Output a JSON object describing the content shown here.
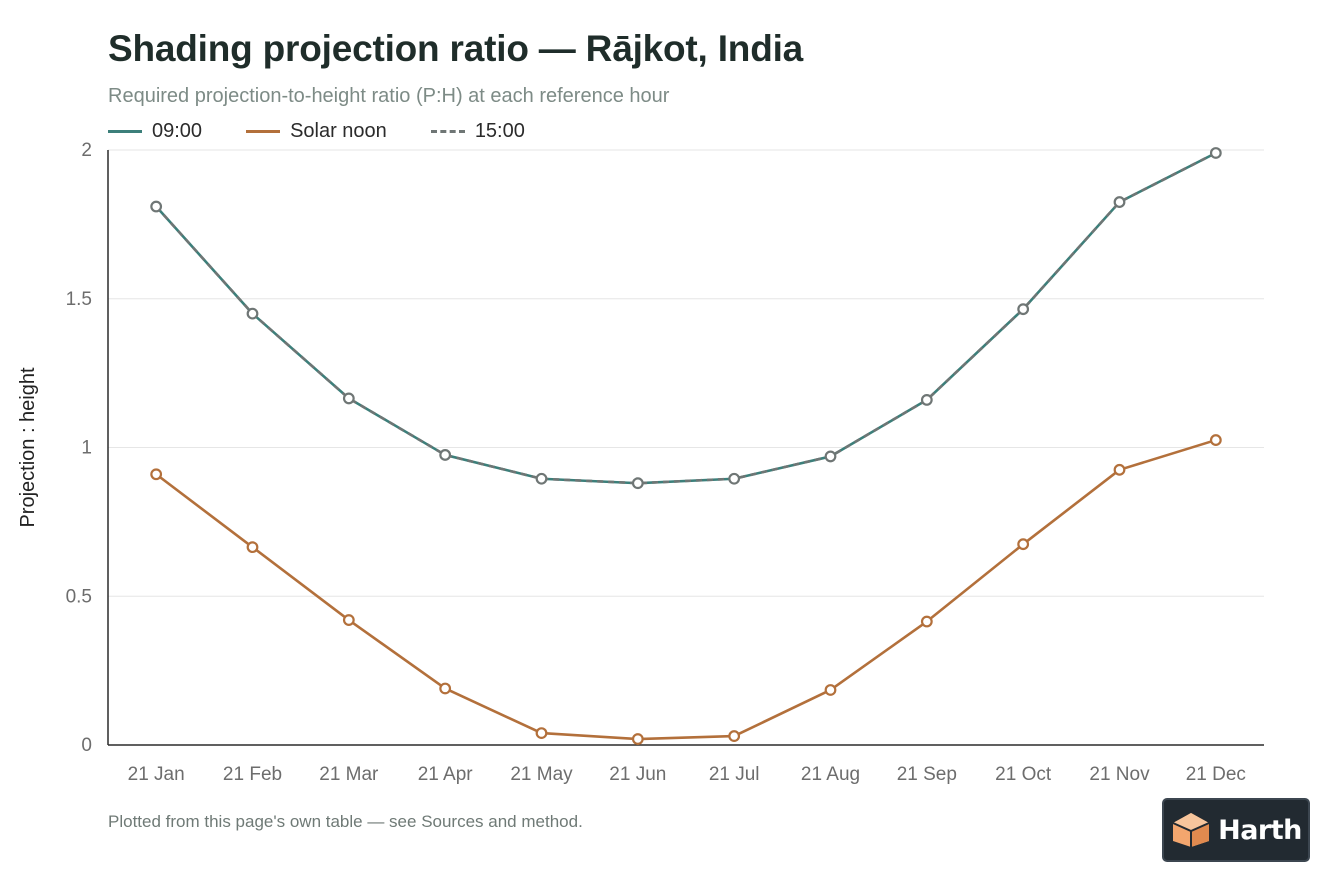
{
  "title": "Shading projection ratio — Rājkot, India",
  "subtitle": "Required projection-to-height ratio (P:H) at each reference hour",
  "footnote": "Plotted from this page's own table — see Sources and method.",
  "brand": {
    "name": "Harth",
    "icon": "cube-logo-icon"
  },
  "colors": {
    "series_0900": "#3c7f7a",
    "series_noon": "#b3703b",
    "series_1500": "#6f7675",
    "grid": "#e6e6e6",
    "axis": "#2b2b2b"
  },
  "chart_data": {
    "type": "line",
    "title": "Shading projection ratio — Rājkot, India",
    "subtitle": "Required projection-to-height ratio (P:H) at each reference hour",
    "xlabel": "",
    "ylabel": "Projection : height",
    "categories": [
      "21 Jan",
      "21 Feb",
      "21 Mar",
      "21 Apr",
      "21 May",
      "21 Jun",
      "21 Jul",
      "21 Aug",
      "21 Sep",
      "21 Oct",
      "21 Nov",
      "21 Dec"
    ],
    "ylim": [
      0,
      2
    ],
    "yticks": [
      "0",
      "0.5",
      "1",
      "1.5",
      "2"
    ],
    "grid": true,
    "legend": "top-left",
    "series": [
      {
        "name": "09:00",
        "style": "solid",
        "values": [
          1.81,
          1.45,
          1.165,
          0.975,
          0.895,
          0.88,
          0.895,
          0.97,
          1.16,
          1.465,
          1.825,
          1.99
        ]
      },
      {
        "name": "Solar noon",
        "style": "solid",
        "values": [
          0.91,
          0.665,
          0.42,
          0.19,
          0.04,
          0.02,
          0.03,
          0.185,
          0.415,
          0.675,
          0.925,
          1.025
        ]
      },
      {
        "name": "15:00",
        "style": "dashed",
        "values": [
          1.81,
          1.45,
          1.165,
          0.975,
          0.895,
          0.88,
          0.895,
          0.97,
          1.16,
          1.465,
          1.825,
          1.99
        ]
      }
    ]
  }
}
